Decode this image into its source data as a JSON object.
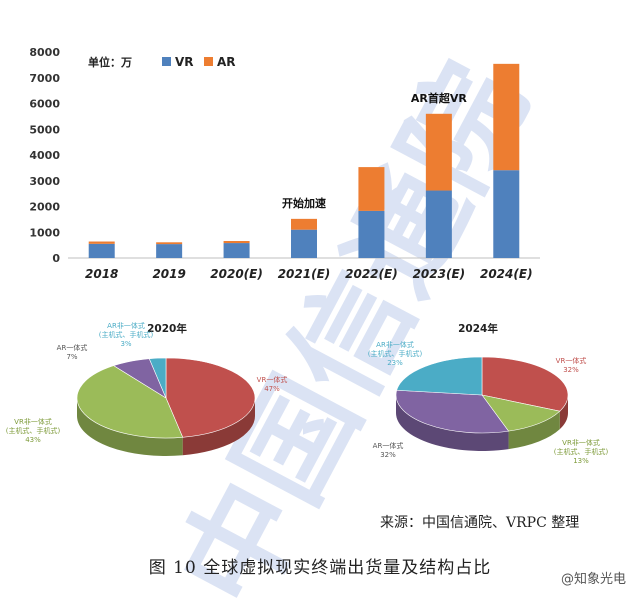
{
  "chart_data": [
    {
      "type": "bar",
      "stacked": true,
      "categories": [
        "2018",
        "2019",
        "2020(E)",
        "2021(E)",
        "2022(E)",
        "2023(E)",
        "2024(E)"
      ],
      "series": [
        {
          "name": "VR",
          "color": "#4f81bd",
          "values": [
            550,
            540,
            580,
            1100,
            1830,
            2620,
            3410
          ]
        },
        {
          "name": "AR",
          "color": "#ed7d31",
          "values": [
            90,
            70,
            80,
            420,
            1700,
            2980,
            4130
          ]
        }
      ],
      "yticks": [
        0,
        1000,
        2000,
        3000,
        4000,
        5000,
        6000,
        7000,
        8000
      ],
      "ylim": [
        0,
        8000
      ],
      "unit_label": "单位：万",
      "legend": "top-left",
      "grid": false,
      "annotations": [
        {
          "category": "2021(E)",
          "text": "开始加速"
        },
        {
          "category": "2023(E)",
          "text": "AR首超VR"
        }
      ]
    },
    {
      "type": "pie",
      "style": "3d",
      "title": "2020年",
      "slices": [
        {
          "label": "VR一体式",
          "value": 47,
          "pct_text": "47%",
          "color": "#c0504d",
          "label_color": "#c0504d"
        },
        {
          "label": "VR非一体式\n(主机式、手机式)",
          "value": 43,
          "pct_text": "43%",
          "color": "#9bbb59",
          "label_color": "#7e9b3a"
        },
        {
          "label": "AR一体式",
          "value": 7,
          "pct_text": "7%",
          "color": "#8064a2",
          "label_color": "#555555"
        },
        {
          "label": "AR非一体式\n(主机式、手机式)",
          "value": 3,
          "pct_text": "3%",
          "color": "#4bacc6",
          "label_color": "#4bacc6"
        }
      ]
    },
    {
      "type": "pie",
      "style": "3d",
      "title": "2024年",
      "slices": [
        {
          "label": "VR一体式",
          "value": 32,
          "pct_text": "32%",
          "color": "#c0504d",
          "label_color": "#c0504d"
        },
        {
          "label": "VR非一体式\n(主机式、手机式)",
          "value": 13,
          "pct_text": "13%",
          "color": "#9bbb59",
          "label_color": "#7e9b3a"
        },
        {
          "label": "AR一体式",
          "value": 32,
          "pct_text": "32%",
          "color": "#8064a2",
          "label_color": "#555555"
        },
        {
          "label": "AR非一体式\n(主机式、手机式)",
          "value": 23,
          "pct_text": "23%",
          "color": "#4bacc6",
          "label_color": "#4bacc6"
        }
      ]
    }
  ],
  "source_text": "来源：中国信通院、VRPC 整理",
  "caption": "图 10 全球虚拟现实终端出货量及结构占比",
  "brand": "@知象光电",
  "watermark": "中国信通院"
}
